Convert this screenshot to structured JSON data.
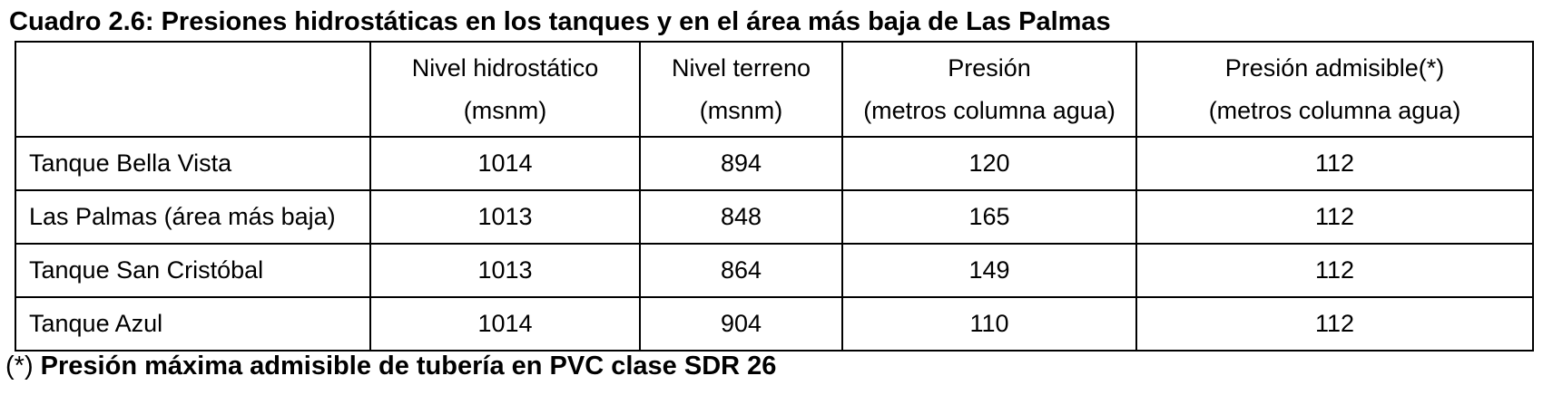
{
  "title": "Cuadro 2.6: Presiones hidrostáticas en los tanques y en el área más baja de Las Palmas",
  "table": {
    "headers": [
      {
        "line1": "",
        "line2": ""
      },
      {
        "line1": "Nivel hidrostático",
        "line2": "(msnm)"
      },
      {
        "line1": "Nivel terreno",
        "line2": "(msnm)"
      },
      {
        "line1": "Presión",
        "line2": "(metros columna agua)"
      },
      {
        "line1": "Presión admisible(*)",
        "line2": "(metros columna agua)"
      }
    ],
    "rows": [
      {
        "name": "Tanque Bella Vista",
        "nivel_hidrostatico": "1014",
        "nivel_terreno": "894",
        "presion": "120",
        "presion_admisible": "112"
      },
      {
        "name": "Las Palmas (área más baja)",
        "nivel_hidrostatico": "1013",
        "nivel_terreno": "848",
        "presion": "165",
        "presion_admisible": "112"
      },
      {
        "name": "Tanque San Cristóbal",
        "nivel_hidrostatico": "1013",
        "nivel_terreno": "864",
        "presion": "149",
        "presion_admisible": "112"
      },
      {
        "name": "Tanque Azul",
        "nivel_hidrostatico": "1014",
        "nivel_terreno": "904",
        "presion": "110",
        "presion_admisible": "112"
      }
    ]
  },
  "footnote": {
    "mark": "(*)",
    "text": "Presión máxima admisible de tubería en PVC clase SDR 26"
  }
}
